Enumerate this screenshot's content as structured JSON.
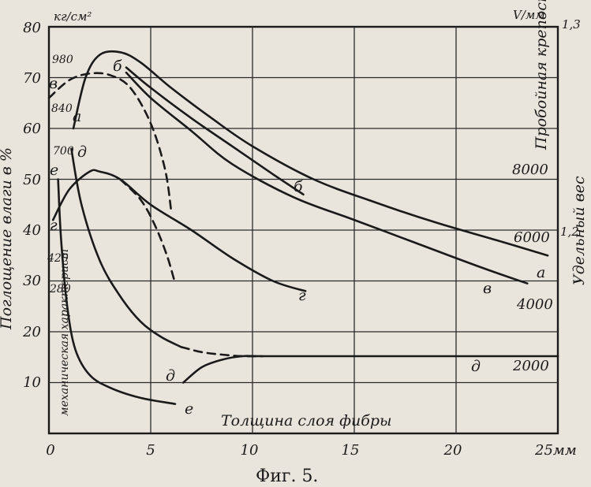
{
  "chart_data": {
    "type": "line",
    "xlabel": "Толщина слоя фибры",
    "x_unit": "25мм",
    "x_ticks": [
      "0",
      "5",
      "10",
      "15",
      "20"
    ],
    "x_range": [
      0,
      25
    ],
    "y_left_title": "Поглощение влаги в %",
    "y_left_ticks": [
      "80",
      "70",
      "60",
      "50",
      "40",
      "30",
      "20",
      "10"
    ],
    "y_left_range": [
      0,
      80
    ],
    "y_mech_unit": "кг/см²",
    "y_mech_title": "механическая характерист",
    "y_mech_ticks": [
      "980",
      "840",
      "700",
      "420",
      "280"
    ],
    "y_right_unit": "V/мм",
    "y_right_title": "Пробойная крепость",
    "y_right_ticks": [
      "8000",
      "6000",
      "4000",
      "2000"
    ],
    "y_far_title": "Удельный вес",
    "y_far_ticks": [
      "1,3",
      "1,2"
    ],
    "grid": true,
    "series": [
      {
        "name": "а",
        "style": "solid",
        "x": [
          1.2,
          1.8,
          2.5,
          3.5,
          4.5,
          6,
          8,
          10,
          13,
          16,
          19,
          22,
          24.5
        ],
        "y": [
          60,
          70,
          74.5,
          75,
          73,
          68,
          62,
          56.5,
          50,
          45.5,
          41.5,
          38,
          35
        ]
      },
      {
        "name": "б",
        "style": "solid",
        "x": [
          3.8,
          5,
          7,
          9,
          11,
          12.5
        ],
        "y": [
          72,
          68,
          62,
          56.5,
          51,
          47
        ]
      },
      {
        "name": "в",
        "style": "solid",
        "x": [
          3.8,
          5,
          7,
          9,
          12,
          15,
          18,
          21,
          23.5
        ],
        "y": [
          71,
          66,
          59.5,
          53,
          46.5,
          42,
          37.5,
          33,
          29.5
        ]
      },
      {
        "name": "в",
        "style": "dashed",
        "x": [
          0,
          1,
          2,
          3,
          4,
          5,
          5.7,
          6
        ],
        "y": [
          66,
          69.5,
          70.8,
          70.5,
          68,
          61,
          52,
          44
        ]
      },
      {
        "name": "г",
        "style": "solid",
        "x": [
          0.2,
          1,
          2,
          2.5,
          3.5,
          5,
          7,
          9,
          11,
          12.6
        ],
        "y": [
          42,
          48,
          51.5,
          51.5,
          50,
          45,
          40,
          34.5,
          30,
          28
        ]
      },
      {
        "name": "г",
        "style": "dashed",
        "x": [
          3.5,
          4.5,
          5.2,
          5.8,
          6.2
        ],
        "y": [
          50,
          46,
          41,
          35,
          29.5
        ]
      },
      {
        "name": "д",
        "style": "solid",
        "x": [
          1.1,
          1.6,
          2.5,
          3.5,
          4.5,
          5.5,
          6.5
        ],
        "y": [
          56,
          45,
          34,
          27,
          22,
          19,
          17
        ]
      },
      {
        "name": "д",
        "style": "dashed",
        "x": [
          6.5,
          7.5,
          8.5,
          9.5,
          10.5
        ],
        "y": [
          17,
          16,
          15.5,
          15.2,
          15.2
        ]
      },
      {
        "name": "д",
        "style": "solid",
        "x": [
          6.6,
          7.5,
          8.5,
          9.5,
          10.5,
          15,
          20,
          25
        ],
        "y": [
          10,
          13,
          14.5,
          15.2,
          15.2,
          15.2,
          15.2,
          15.2
        ]
      },
      {
        "name": "е",
        "style": "solid",
        "x": [
          0.45,
          0.6,
          0.9,
          1.3,
          2,
          3,
          4.5,
          6.2
        ],
        "y": [
          50,
          38,
          25,
          16.5,
          11.5,
          9,
          7,
          5.8
        ]
      }
    ],
    "curve_labels": [
      "а",
      "б",
      "в",
      "в",
      "г",
      "г",
      "д",
      "д",
      "д",
      "е",
      "е"
    ]
  },
  "caption": "Фиг. 5."
}
